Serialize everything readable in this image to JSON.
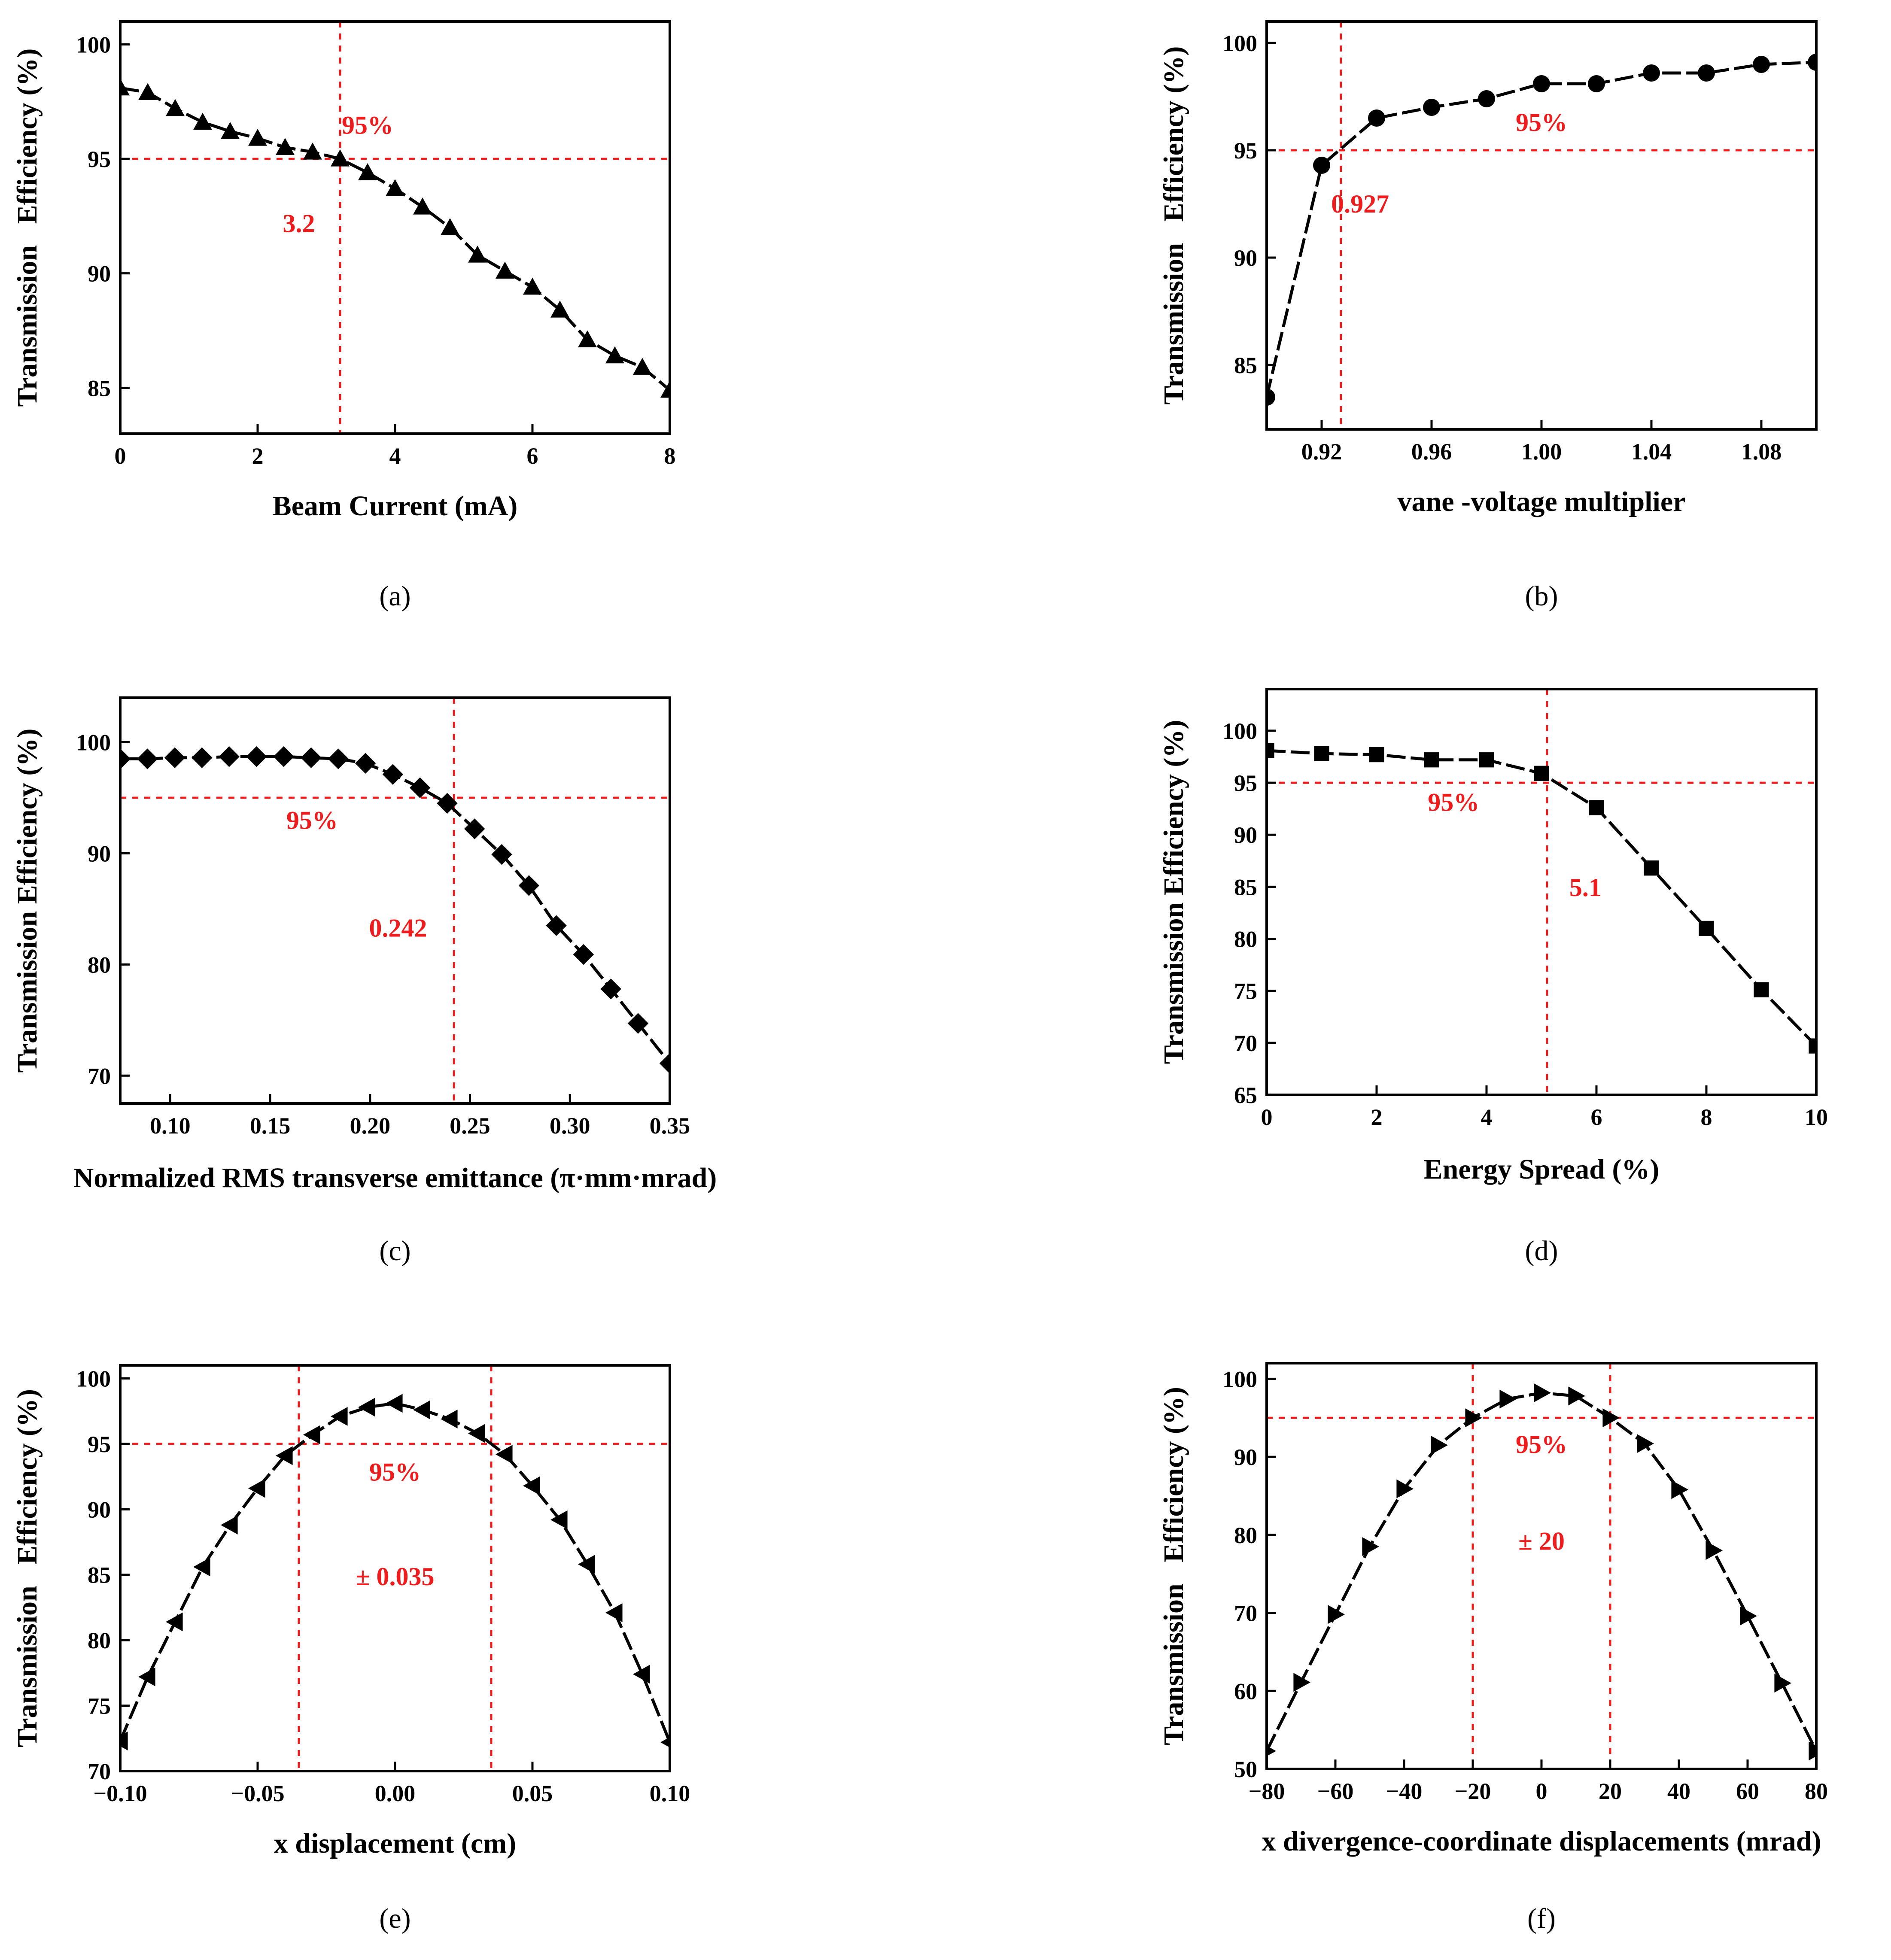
{
  "figure": {
    "background": "#ffffff",
    "ref_color": "#ee1c1c",
    "line_color": "#000000"
  },
  "chart_data": [
    {
      "type": "line",
      "panel_label": "(a)",
      "xlabel": "Beam Current (mA)",
      "ylabel": "Transmission   Efficiency (%)",
      "xlim": [
        0,
        8
      ],
      "ylim": [
        83,
        101
      ],
      "xticks": [
        0,
        2,
        4,
        6,
        8
      ],
      "xtick_labels": [
        "0",
        "2",
        "4",
        "6",
        "8"
      ],
      "yticks": [
        85,
        90,
        95,
        100
      ],
      "ytick_labels": [
        "85",
        "90",
        "95",
        "100"
      ],
      "marker": "triangle-up",
      "x": [
        0,
        0.4,
        0.8,
        1.2,
        1.6,
        2.0,
        2.4,
        2.8,
        3.2,
        3.6,
        4.0,
        4.4,
        4.8,
        5.2,
        5.6,
        6.0,
        6.4,
        6.8,
        7.2,
        7.6,
        8.0
      ],
      "y": [
        98.1,
        97.9,
        97.2,
        96.6,
        96.2,
        95.9,
        95.5,
        95.3,
        95.0,
        94.4,
        93.7,
        92.9,
        92.0,
        90.8,
        90.1,
        89.4,
        88.4,
        87.1,
        86.4,
        85.9,
        84.9
      ],
      "ref_h": 95,
      "ref_v": [
        3.2
      ],
      "annotations": [
        {
          "text": "95%",
          "x": 3.6,
          "y": 96.1
        },
        {
          "text": "3.2",
          "x": 2.6,
          "y": 91.8
        }
      ]
    },
    {
      "type": "line",
      "panel_label": "(b)",
      "xlabel": "vane -voltage multiplier",
      "ylabel": "Transmission   Efficiency (%)",
      "xlim": [
        0.9,
        1.1
      ],
      "ylim": [
        82,
        101
      ],
      "xticks": [
        0.92,
        0.96,
        1.0,
        1.04,
        1.08
      ],
      "xtick_labels": [
        "0.92",
        "0.96",
        "1.00",
        "1.04",
        "1.08"
      ],
      "yticks": [
        85,
        90,
        95,
        100
      ],
      "ytick_labels": [
        "85",
        "90",
        "95",
        "100"
      ],
      "marker": "circle",
      "x": [
        0.9,
        0.92,
        0.94,
        0.96,
        0.98,
        1.0,
        1.02,
        1.04,
        1.06,
        1.08,
        1.1
      ],
      "y": [
        83.5,
        94.3,
        96.5,
        97.0,
        97.4,
        98.1,
        98.1,
        98.6,
        98.6,
        99.0,
        99.1
      ],
      "ref_h": 95,
      "ref_v": [
        0.927
      ],
      "annotations": [
        {
          "text": "95%",
          "x": 1.0,
          "y": 95.9
        },
        {
          "text": "0.927",
          "x": 0.934,
          "y": 92.1
        }
      ]
    },
    {
      "type": "line",
      "panel_label": "(c)",
      "xlabel": "Normalized RMS transverse emittance (π·mm·mrad)",
      "ylabel": "Transmission Efficiency (%)",
      "xlim": [
        0.075,
        0.35
      ],
      "ylim": [
        67.5,
        104
      ],
      "xticks": [
        0.1,
        0.15,
        0.2,
        0.25,
        0.3,
        0.35
      ],
      "xtick_labels": [
        "0.10",
        "0.15",
        "0.20",
        "0.25",
        "0.30",
        "0.35"
      ],
      "yticks": [
        70,
        80,
        90,
        100
      ],
      "ytick_labels": [
        "70",
        "80",
        "90",
        "100"
      ],
      "marker": "diamond",
      "x": [
        0.075,
        0.0886,
        0.1023,
        0.1159,
        0.1295,
        0.1432,
        0.1568,
        0.1705,
        0.1841,
        0.1977,
        0.2114,
        0.225,
        0.2386,
        0.2523,
        0.2659,
        0.2795,
        0.2932,
        0.3068,
        0.3205,
        0.3341,
        0.35
      ],
      "y": [
        98.5,
        98.5,
        98.6,
        98.6,
        98.7,
        98.7,
        98.7,
        98.6,
        98.5,
        98.1,
        97.1,
        95.9,
        94.5,
        92.2,
        89.9,
        87.1,
        83.5,
        80.9,
        77.8,
        74.7,
        71.1
      ],
      "ref_h": 95,
      "ref_v": [
        0.242
      ],
      "annotations": [
        {
          "text": "95%",
          "x": 0.171,
          "y": 92.2
        },
        {
          "text": "0.242",
          "x": 0.214,
          "y": 82.5
        }
      ]
    },
    {
      "type": "line",
      "panel_label": "(d)",
      "xlabel": "Energy Spread (%)",
      "ylabel": "Transmission Efficiency (%)",
      "xlim": [
        0,
        10
      ],
      "ylim": [
        65,
        104
      ],
      "xticks": [
        0,
        2,
        4,
        6,
        8,
        10
      ],
      "xtick_labels": [
        "0",
        "2",
        "4",
        "6",
        "8",
        "10"
      ],
      "yticks": [
        65,
        70,
        75,
        80,
        85,
        90,
        95,
        100
      ],
      "ytick_labels": [
        "65",
        "70",
        "75",
        "80",
        "85",
        "90",
        "95",
        "100"
      ],
      "marker": "square",
      "x": [
        0,
        1,
        2,
        3,
        4,
        5,
        6,
        7,
        8,
        9,
        10
      ],
      "y": [
        98.1,
        97.8,
        97.7,
        97.2,
        97.2,
        95.9,
        92.6,
        86.8,
        81.0,
        75.1,
        69.7
      ],
      "ref_h": 95,
      "ref_v": [
        5.1
      ],
      "annotations": [
        {
          "text": "95%",
          "x": 3.4,
          "y": 92.3
        },
        {
          "text": "5.1",
          "x": 5.8,
          "y": 84.1
        }
      ]
    },
    {
      "type": "line",
      "panel_label": "(e)",
      "xlabel": "x displacement (cm)",
      "ylabel": "Transmission   Efficiency (%)",
      "xlim": [
        -0.1,
        0.1
      ],
      "ylim": [
        70,
        101
      ],
      "xticks": [
        -0.1,
        -0.05,
        0,
        0.05,
        0.1
      ],
      "xtick_labels": [
        "−0.10",
        "−0.05",
        "0.00",
        "0.05",
        "0.10"
      ],
      "yticks": [
        70,
        75,
        80,
        85,
        90,
        95,
        100
      ],
      "ytick_labels": [
        "70",
        "75",
        "80",
        "85",
        "90",
        "95",
        "100"
      ],
      "marker": "triangle-left",
      "x": [
        -0.1,
        -0.09,
        -0.08,
        -0.07,
        -0.06,
        -0.05,
        -0.04,
        -0.03,
        -0.02,
        -0.01,
        0,
        0.01,
        0.02,
        0.03,
        0.04,
        0.05,
        0.06,
        0.07,
        0.08,
        0.09,
        0.1
      ],
      "y": [
        72.3,
        77.2,
        81.4,
        85.6,
        88.8,
        91.6,
        94.1,
        95.7,
        97.1,
        97.8,
        98.1,
        97.6,
        96.9,
        95.8,
        94.2,
        91.8,
        89.2,
        85.8,
        82.1,
        77.4,
        72.2
      ],
      "ref_h": 95,
      "ref_v": [
        -0.035,
        0.035
      ],
      "annotations": [
        {
          "text": "95%",
          "x": 0.0,
          "y": 92.2
        },
        {
          "text": "± 0.035",
          "x": 0.0,
          "y": 84.2
        }
      ]
    },
    {
      "type": "line",
      "panel_label": "(f)",
      "xlabel": "x divergence-coordinate displacements (mrad)",
      "ylabel": "Transmission   Efficiency (%)",
      "xlim": [
        -80,
        80
      ],
      "ylim": [
        50,
        102
      ],
      "xticks": [
        -80,
        -60,
        -40,
        -20,
        0,
        20,
        40,
        60,
        80
      ],
      "xtick_labels": [
        "−80",
        "−60",
        "−40",
        "−20",
        "0",
        "20",
        "40",
        "60",
        "80"
      ],
      "yticks": [
        50,
        60,
        70,
        80,
        90,
        100
      ],
      "ytick_labels": [
        "50",
        "60",
        "70",
        "80",
        "90",
        "100"
      ],
      "marker": "triangle-right",
      "x": [
        -80,
        -70,
        -60,
        -50,
        -40,
        -30,
        -20,
        -10,
        0,
        10,
        20,
        30,
        40,
        50,
        60,
        70,
        80
      ],
      "y": [
        52.3,
        61.1,
        69.8,
        78.5,
        85.9,
        91.5,
        95.0,
        97.4,
        98.2,
        97.8,
        95.0,
        91.7,
        85.8,
        78.0,
        69.6,
        61.0,
        52.3
      ],
      "ref_h": 95,
      "ref_v": [
        -20,
        20
      ],
      "annotations": [
        {
          "text": "95%",
          "x": 0,
          "y": 90.5
        },
        {
          "text": "± 20",
          "x": 0,
          "y": 78.1
        }
      ]
    }
  ]
}
